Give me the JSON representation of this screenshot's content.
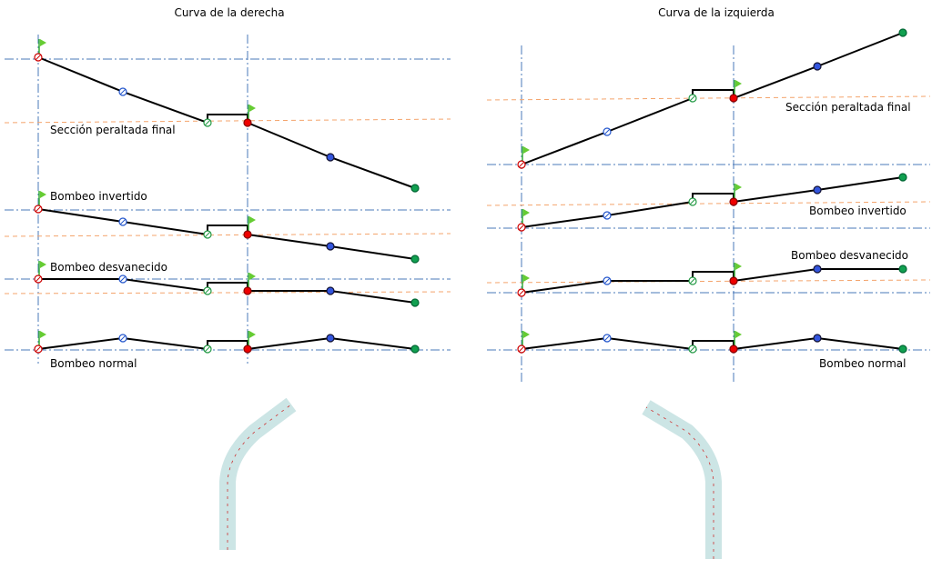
{
  "panels": [
    {
      "title": "Curva de la derecha",
      "labels": [
        "Sección peraltada final",
        "Bombeo invertido",
        "Bombeo desvanecido",
        "Bombeo normal"
      ]
    },
    {
      "title": "Curva de la izquierda",
      "labels": [
        "Sección peraltada final",
        "Bombeo invertido",
        "Bombeo desvanecido",
        "Bombeo normal"
      ]
    }
  ]
}
